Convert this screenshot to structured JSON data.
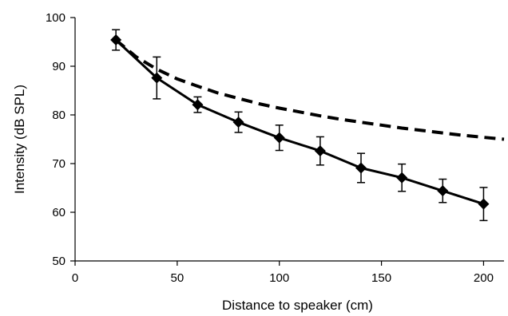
{
  "chart_data": {
    "type": "line",
    "xlabel": "Distance to speaker (cm)",
    "ylabel": "Intensity (dB SPL)",
    "xlim": [
      0,
      210
    ],
    "ylim": [
      50,
      100
    ],
    "x_ticks": [
      0,
      50,
      100,
      150,
      200
    ],
    "y_ticks": [
      50,
      60,
      70,
      80,
      90,
      100
    ],
    "x_tick_labels": [
      "0",
      "50",
      "100",
      "150",
      "200"
    ],
    "y_tick_labels": [
      "50",
      "60",
      "70",
      "80",
      "90",
      "100"
    ],
    "grid": false,
    "legend": "none",
    "series": [
      {
        "style": "solid",
        "marker": "diamond",
        "color": "#000000",
        "x": [
          20,
          40,
          60,
          80,
          100,
          120,
          140,
          160,
          180,
          200
        ],
        "y": [
          95.4,
          87.6,
          82.1,
          78.5,
          75.3,
          72.6,
          69.1,
          67.1,
          64.4,
          61.7
        ],
        "error": [
          2.1,
          4.3,
          1.6,
          2.1,
          2.6,
          2.9,
          3.0,
          2.8,
          2.4,
          3.4
        ]
      },
      {
        "style": "dashed",
        "marker": "none",
        "color": "#000000",
        "x": [
          20,
          30,
          40,
          50,
          60,
          70,
          80,
          90,
          100,
          110,
          120,
          130,
          140,
          150,
          160,
          170,
          180,
          190,
          200,
          210
        ],
        "y": [
          95.4,
          91.9,
          89.4,
          87.4,
          85.9,
          84.5,
          83.4,
          82.3,
          81.4,
          80.6,
          79.8,
          79.1,
          78.5,
          77.9,
          77.3,
          76.8,
          76.3,
          75.8,
          75.4,
          75.0
        ]
      }
    ]
  }
}
